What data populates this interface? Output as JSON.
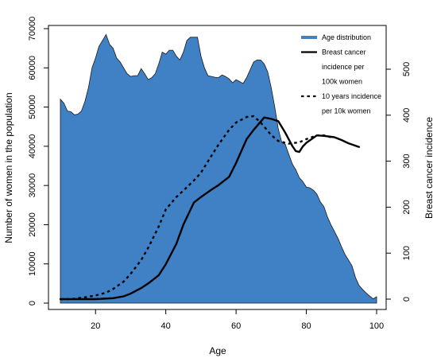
{
  "chart_data": {
    "type": "area",
    "xlabel": "Age",
    "ylabel_left": "Number of women in the population",
    "ylabel_right": "Breast cancer incidence",
    "xlim": [
      10,
      100
    ],
    "ylim_left": [
      0,
      70000
    ],
    "ylim_right": [
      0,
      540
    ],
    "x_ticks": [
      20,
      40,
      60,
      80,
      100
    ],
    "y_left_ticks": [
      0,
      10000,
      20000,
      30000,
      40000,
      50000,
      60000,
      70000
    ],
    "y_right_ticks": [
      0,
      100,
      200,
      300,
      400,
      500
    ],
    "grid": false,
    "legend_position": "top-right",
    "area_color": "#4080c5",
    "line_color": "#000000",
    "legend": [
      {
        "key": "area",
        "lines": [
          "Age distribution"
        ]
      },
      {
        "key": "solid",
        "lines": [
          "Breast cancer",
          "incidence per",
          "100k women"
        ]
      },
      {
        "key": "dashed",
        "lines": [
          "10 years incidence",
          "per 10k women"
        ]
      }
    ],
    "series": [
      {
        "name": "Age distribution",
        "axis": "left",
        "style": "area",
        "x": [
          10,
          11,
          12,
          13,
          14,
          15,
          16,
          17,
          18,
          19,
          20,
          21,
          22,
          23,
          24,
          25,
          26,
          27,
          28,
          29,
          30,
          31,
          32,
          33,
          34,
          35,
          36,
          37,
          38,
          39,
          40,
          41,
          42,
          43,
          44,
          45,
          46,
          47,
          48,
          49,
          50,
          51,
          52,
          53,
          54,
          55,
          56,
          57,
          58,
          59,
          60,
          61,
          62,
          63,
          64,
          65,
          66,
          67,
          68,
          69,
          70,
          71,
          72,
          73,
          74,
          75,
          76,
          77,
          78,
          79,
          80,
          81,
          82,
          83,
          84,
          85,
          86,
          87,
          88,
          89,
          90,
          91,
          92,
          93,
          94,
          95,
          96,
          97,
          98,
          99,
          100
        ],
        "values": [
          52000,
          51000,
          49000,
          48800,
          48000,
          48200,
          49000,
          51500,
          55000,
          60000,
          62500,
          65500,
          67000,
          68500,
          66000,
          65000,
          62500,
          61500,
          60000,
          58500,
          57800,
          58000,
          58000,
          59800,
          58500,
          57000,
          57500,
          58500,
          61000,
          64000,
          63500,
          64500,
          64500,
          63000,
          62000,
          64000,
          67000,
          67800,
          67800,
          67800,
          63000,
          60000,
          58000,
          57800,
          57600,
          57500,
          58200,
          57800,
          57200,
          56200,
          57000,
          56500,
          56000,
          57500,
          59500,
          61500,
          62000,
          62000,
          61000,
          59000,
          55000,
          50000,
          44500,
          41000,
          40500,
          38000,
          35500,
          34000,
          32000,
          31000,
          29600,
          29400,
          28800,
          27800,
          25800,
          24600,
          22000,
          20000,
          18300,
          16500,
          14400,
          12400,
          11000,
          9500,
          6500,
          4500,
          3500,
          2600,
          1800,
          1100,
          1600
        ]
      },
      {
        "name": "Breast cancer incidence per 100k women",
        "axis": "right",
        "style": "solid",
        "x": [
          10,
          15,
          20,
          25,
          28,
          30,
          33,
          35,
          38,
          40,
          43,
          45,
          48,
          50,
          53,
          55,
          58,
          60,
          63,
          65,
          68,
          70,
          72,
          74,
          76,
          77,
          78,
          79,
          80,
          83,
          85,
          88,
          90,
          92,
          95
        ],
        "values": [
          0,
          0,
          0,
          2,
          6,
          12,
          24,
          34,
          52,
          76,
          120,
          162,
          210,
          222,
          238,
          248,
          266,
          296,
          348,
          368,
          395,
          392,
          387,
          362,
          333,
          322,
          320,
          332,
          340,
          356,
          355,
          352,
          346,
          339,
          331
        ]
      },
      {
        "name": "10 years incidence per 10k women",
        "axis": "right",
        "style": "dashed",
        "x": [
          10,
          13,
          15,
          17,
          20,
          23,
          25,
          28,
          30,
          33,
          35,
          38,
          40,
          43,
          45,
          48,
          50,
          53,
          55,
          58,
          60,
          63,
          65,
          67,
          70,
          72,
          75,
          78,
          80,
          83,
          85,
          87
        ],
        "values": [
          0,
          0,
          2,
          4,
          8,
          14,
          22,
          38,
          55,
          85,
          112,
          158,
          195,
          222,
          236,
          258,
          275,
          312,
          336,
          368,
          384,
          396,
          398,
          384,
          357,
          344,
          338,
          341,
          348,
          356,
          356,
          352
        ]
      }
    ]
  }
}
